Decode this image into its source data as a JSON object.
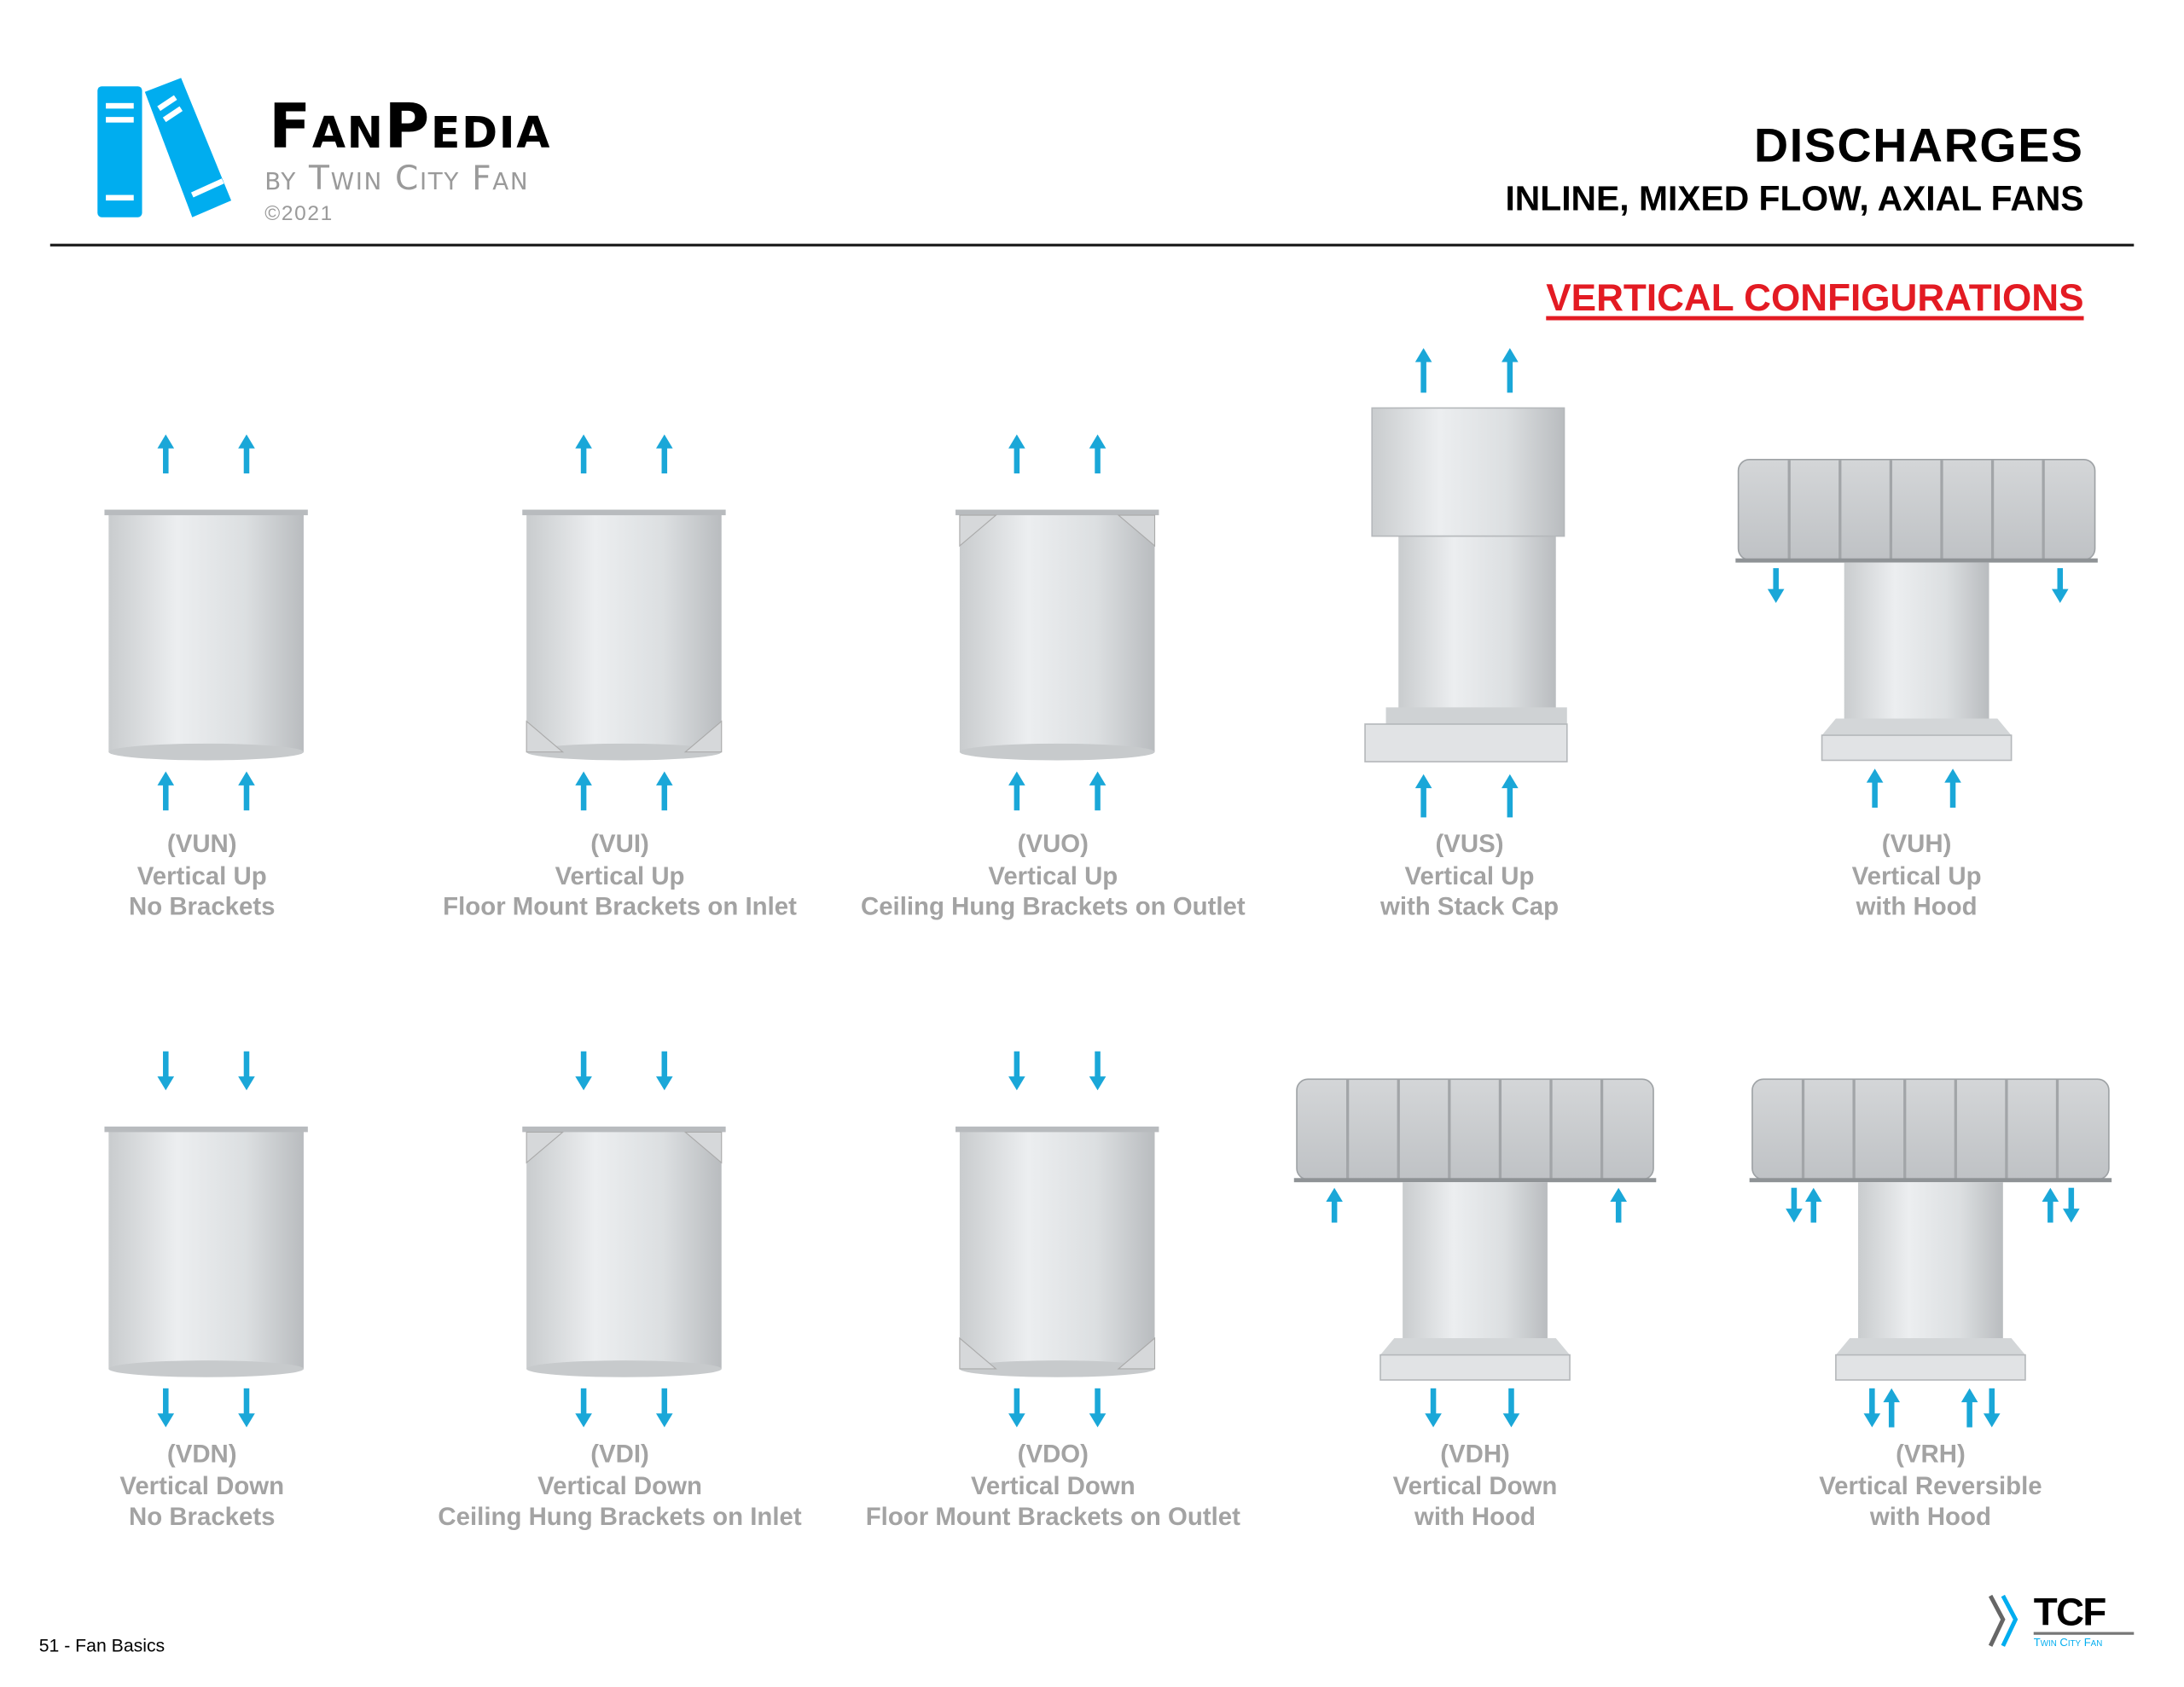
{
  "header": {
    "brand_name": "FanPedia",
    "brand_by": "by Twin City Fan",
    "brand_copyright": "©2021",
    "title": "DISCHARGES",
    "subtitle": "INLINE, MIXED FLOW, AXIAL FANS"
  },
  "section_title": "VERTICAL CONFIGURATIONS",
  "colors": {
    "arrow": "#1aa7d8",
    "accent_red": "#e31b23",
    "logo_blue": "#00adef",
    "caption_gray": "#a3a3a3"
  },
  "configurations": [
    {
      "code": "(VUN)",
      "line1": "Vertical Up",
      "line2": "No Brackets",
      "illustration": "plain-cylinder",
      "airflow": "up"
    },
    {
      "code": "(VUI)",
      "line1": "Vertical Up",
      "line2": "Floor Mount Brackets on Inlet",
      "illustration": "cylinder-brackets-bottom",
      "airflow": "up"
    },
    {
      "code": "(VUO)",
      "line1": "Vertical Up",
      "line2": "Ceiling Hung Brackets on Outlet",
      "illustration": "cylinder-brackets-top",
      "airflow": "up"
    },
    {
      "code": "(VUS)",
      "line1": "Vertical Up",
      "line2": "with Stack Cap",
      "illustration": "stack-cap",
      "airflow": "up"
    },
    {
      "code": "(VUH)",
      "line1": "Vertical Up",
      "line2": "with Hood",
      "illustration": "hood",
      "airflow": "up"
    },
    {
      "code": "(VDN)",
      "line1": "Vertical Down",
      "line2": "No Brackets",
      "illustration": "plain-cylinder",
      "airflow": "down"
    },
    {
      "code": "(VDI)",
      "line1": "Vertical Down",
      "line2": "Ceiling Hung Brackets on Inlet",
      "illustration": "cylinder-brackets-top",
      "airflow": "down"
    },
    {
      "code": "(VDO)",
      "line1": "Vertical Down",
      "line2": "Floor Mount Brackets on Outlet",
      "illustration": "cylinder-brackets-bottom",
      "airflow": "down"
    },
    {
      "code": "(VDH)",
      "line1": "Vertical Down",
      "line2": "with Hood",
      "illustration": "hood",
      "airflow": "down"
    },
    {
      "code": "(VRH)",
      "line1": "Vertical Reversible",
      "line2": "with Hood",
      "illustration": "hood",
      "airflow": "reversible"
    }
  ],
  "footer": {
    "page_label": "51 - Fan Basics",
    "logo_text": "TCF",
    "logo_sub": "Twin City Fan"
  }
}
